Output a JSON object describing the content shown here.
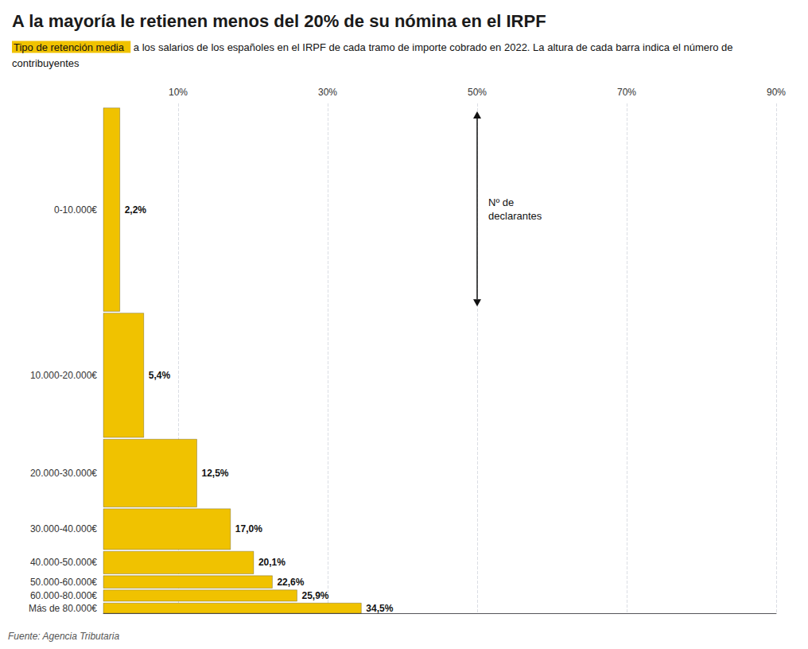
{
  "chart_data": {
    "type": "bar",
    "orientation": "horizontal",
    "title": "A la mayoría le retienen menos del 20% de su nómina en el IRPF",
    "subtitle": [
      "Tipo de retención media",
      " a los salarios de los españoles en el IRPF de cada tramo de importe cobrado en 2022. La altura de cada barra indica el número de contribuyentes"
    ],
    "source": "Fuente: Agencia Tributaria",
    "categories": [
      "0-10.000€",
      "10.000-20.000€",
      "20.000-30.000€",
      "30.000-40.000€",
      "40.000-50.000€",
      "50.000-60.000€",
      "60.000-80.000€",
      "Más de 80.000€"
    ],
    "values": [
      2.2,
      5.4,
      12.5,
      17.0,
      20.1,
      22.6,
      25.9,
      34.5
    ],
    "value_labels": [
      "2,2%",
      "5,4%",
      "12,5%",
      "17,0%",
      "20,1%",
      "22,6%",
      "25,9%",
      "34,5%"
    ],
    "data_labels": true,
    "bar_heights": [
      9.0,
      5.5,
      3.0,
      1.8,
      1.0,
      0.55,
      0.5,
      0.45
    ],
    "color": "#F0C200",
    "xlim": [
      0,
      90
    ],
    "xticks": [
      {
        "value": 10,
        "label": "10%"
      },
      {
        "value": 30,
        "label": "30%"
      },
      {
        "value": 50,
        "label": "50%"
      },
      {
        "value": 70,
        "label": "70%"
      },
      {
        "value": 90,
        "label": "90%"
      }
    ],
    "grid": true,
    "annotation": {
      "text": "Nº de\ndeclarantes",
      "x": 50
    }
  }
}
